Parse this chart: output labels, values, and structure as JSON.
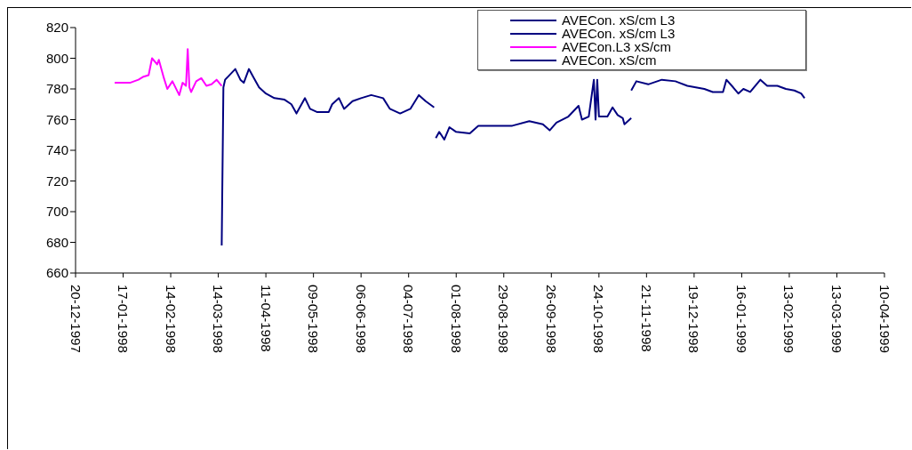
{
  "chart_data": {
    "type": "line",
    "xlim": [
      "1997-12-20",
      "1999-04-10"
    ],
    "xticks": [
      {
        "value": "1997-12-20",
        "label": "20-12-1997"
      },
      {
        "value": "1998-01-17",
        "label": "17-01-1998"
      },
      {
        "value": "1998-02-14",
        "label": "14-02-1998"
      },
      {
        "value": "1998-03-14",
        "label": "14-03-1998"
      },
      {
        "value": "1998-04-11",
        "label": "11-04-1998"
      },
      {
        "value": "1998-05-09",
        "label": "09-05-1998"
      },
      {
        "value": "1998-06-06",
        "label": "06-06-1998"
      },
      {
        "value": "1998-07-04",
        "label": "04-07-1998"
      },
      {
        "value": "1998-08-01",
        "label": "01-08-1998"
      },
      {
        "value": "1998-08-29",
        "label": "29-08-1998"
      },
      {
        "value": "1998-09-26",
        "label": "26-09-1998"
      },
      {
        "value": "1998-10-24",
        "label": "24-10-1998"
      },
      {
        "value": "1998-11-21",
        "label": "21-11-1998"
      },
      {
        "value": "1998-12-19",
        "label": "19-12-1998"
      },
      {
        "value": "1999-01-16",
        "label": "16-01-1999"
      },
      {
        "value": "1999-02-13",
        "label": "13-02-1999"
      },
      {
        "value": "1999-03-13",
        "label": "13-03-1999"
      },
      {
        "value": "1999-04-10",
        "label": "10-04-1999"
      }
    ],
    "ylim": [
      660,
      820
    ],
    "yticks": [
      660,
      680,
      700,
      720,
      740,
      760,
      780,
      800,
      820
    ],
    "grid": false,
    "legend": "top right",
    "marker": "none",
    "line_style": "solid",
    "series": [
      {
        "name": "AVECon. xS/cm L3",
        "color": "#000080",
        "x": [
          "1998-03-16",
          "1998-03-17",
          "1998-03-18",
          "1998-03-24",
          "1998-03-27",
          "1998-03-29",
          "1998-04-01",
          "1998-04-04",
          "1998-04-07",
          "1998-04-11",
          "1998-04-16",
          "1998-04-22",
          "1998-04-26",
          "1998-04-29",
          "1998-05-04",
          "1998-05-07",
          "1998-05-11",
          "1998-05-18",
          "1998-05-20",
          "1998-05-24",
          "1998-05-27",
          "1998-06-01",
          "1998-06-06",
          "1998-06-12",
          "1998-06-19",
          "1998-06-23",
          "1998-06-29",
          "1998-07-05",
          "1998-07-10",
          "1998-07-14",
          "1998-07-19"
        ],
        "values": [
          678,
          781,
          786,
          793,
          786,
          784,
          793,
          787,
          781,
          777,
          774,
          773,
          770,
          764,
          774,
          767,
          765,
          765,
          770,
          774,
          767,
          772,
          774,
          776,
          774,
          767,
          764,
          767,
          776,
          772,
          768
        ]
      },
      {
        "name": "AVECon. xS/cm L3",
        "color": "#000080",
        "x": [
          "1998-07-20",
          "1998-07-22",
          "1998-07-25",
          "1998-07-28",
          "1998-08-01",
          "1998-08-09",
          "1998-08-14",
          "1998-08-24",
          "1998-09-03",
          "1998-09-13",
          "1998-09-21",
          "1998-09-25",
          "1998-09-29",
          "1998-10-06",
          "1998-10-12",
          "1998-10-14",
          "1998-10-18",
          "1998-10-21",
          "1998-10-22",
          "1998-10-23",
          "1998-10-24",
          "1998-10-29",
          "1998-11-01",
          "1998-11-04",
          "1998-11-07",
          "1998-11-08",
          "1998-11-12"
        ],
        "values": [
          748,
          752,
          747,
          755,
          752,
          751,
          756,
          756,
          756,
          759,
          757,
          753,
          758,
          762,
          769,
          760,
          762,
          786,
          760,
          786,
          762,
          762,
          768,
          763,
          761,
          757,
          761
        ]
      },
      {
        "name": "AVECon.L3 xS/cm",
        "color": "#ff00ff",
        "x": [
          "1998-01-12",
          "1998-01-21",
          "1998-01-26",
          "1998-01-29",
          "1998-02-01",
          "1998-02-03",
          "1998-02-06",
          "1998-02-07",
          "1998-02-10",
          "1998-02-12",
          "1998-02-15",
          "1998-02-19",
          "1998-02-21",
          "1998-02-23",
          "1998-02-24",
          "1998-02-25",
          "1998-02-26",
          "1998-03-01",
          "1998-03-04",
          "1998-03-07",
          "1998-03-10",
          "1998-03-13",
          "1998-03-16"
        ],
        "values": [
          784,
          784,
          786,
          788,
          789,
          800,
          796,
          799,
          787,
          780,
          785,
          776,
          784,
          782,
          806,
          781,
          778,
          785,
          787,
          782,
          783,
          786,
          782
        ]
      },
      {
        "name": "AVECon. xS/cm",
        "color": "#000080",
        "x": [
          "1998-11-12",
          "1998-11-15",
          "1998-11-22",
          "1998-11-30",
          "1998-12-08",
          "1998-12-15",
          "1998-12-25",
          "1998-12-30",
          "1999-01-05",
          "1999-01-07",
          "1999-01-11",
          "1999-01-14",
          "1999-01-17",
          "1999-01-21",
          "1999-01-27",
          "1999-01-31",
          "1999-02-06",
          "1999-02-11",
          "1999-02-16",
          "1999-02-20",
          "1999-02-22"
        ],
        "values": [
          779,
          785,
          783,
          786,
          785,
          782,
          780,
          778,
          778,
          786,
          781,
          777,
          780,
          778,
          786,
          782,
          782,
          780,
          779,
          777,
          774
        ]
      }
    ]
  }
}
